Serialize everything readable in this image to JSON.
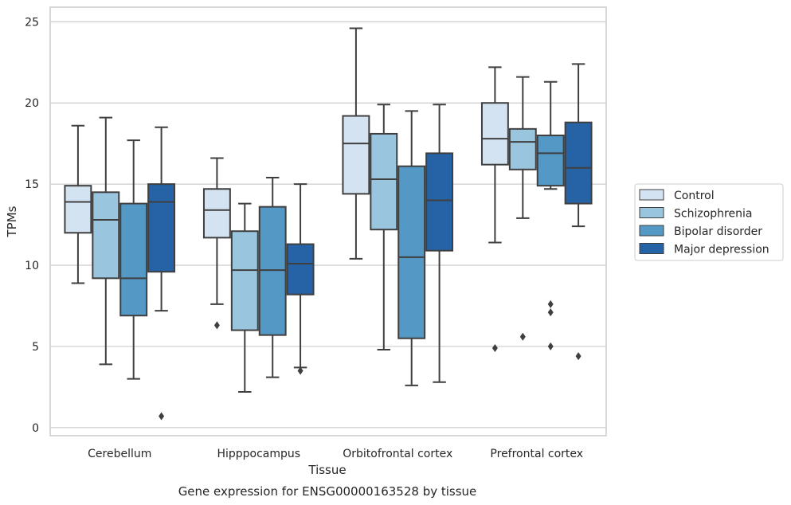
{
  "chart_data": {
    "type": "box",
    "title": "",
    "caption": "Gene expression for ENSG00000163528 by tissue",
    "xlabel": "Tissue",
    "ylabel": "TPMs",
    "ylim": [
      -0.5,
      25.9
    ],
    "yticks": [
      0,
      5,
      10,
      15,
      20,
      25
    ],
    "grid": "horizontal",
    "legend_position": "right",
    "categories": [
      "Cerebellum",
      "Hipppocampus",
      "Orbitofrontal cortex",
      "Prefrontal cortex"
    ],
    "series": [
      {
        "name": "Control",
        "color": "#d4e3f2",
        "boxes": [
          {
            "whislo": 8.9,
            "q1": 12.0,
            "med": 13.9,
            "q3": 14.9,
            "whishi": 18.6,
            "fliers": []
          },
          {
            "whislo": 7.6,
            "q1": 11.7,
            "med": 13.4,
            "q3": 14.7,
            "whishi": 16.6,
            "fliers": [
              6.3
            ]
          },
          {
            "whislo": 10.4,
            "q1": 14.4,
            "med": 17.5,
            "q3": 19.2,
            "whishi": 24.6,
            "fliers": []
          },
          {
            "whislo": 11.4,
            "q1": 16.2,
            "med": 17.8,
            "q3": 20.0,
            "whishi": 22.2,
            "fliers": [
              4.9
            ]
          }
        ]
      },
      {
        "name": "Schizophrenia",
        "color": "#9ac5df",
        "boxes": [
          {
            "whislo": 3.9,
            "q1": 9.2,
            "med": 12.8,
            "q3": 14.5,
            "whishi": 19.1,
            "fliers": []
          },
          {
            "whislo": 2.2,
            "q1": 6.0,
            "med": 9.7,
            "q3": 12.1,
            "whishi": 13.8,
            "fliers": []
          },
          {
            "whislo": 4.8,
            "q1": 12.2,
            "med": 15.3,
            "q3": 18.1,
            "whishi": 19.9,
            "fliers": []
          },
          {
            "whislo": 12.9,
            "q1": 15.9,
            "med": 17.6,
            "q3": 18.4,
            "whishi": 21.6,
            "fliers": [
              5.6
            ]
          }
        ]
      },
      {
        "name": "Bipolar disorder",
        "color": "#5498c5",
        "boxes": [
          {
            "whislo": 3.0,
            "q1": 6.9,
            "med": 9.2,
            "q3": 13.8,
            "whishi": 17.7,
            "fliers": []
          },
          {
            "whislo": 3.1,
            "q1": 5.7,
            "med": 9.7,
            "q3": 13.6,
            "whishi": 15.4,
            "fliers": []
          },
          {
            "whislo": 2.6,
            "q1": 5.5,
            "med": 10.5,
            "q3": 16.1,
            "whishi": 19.5,
            "fliers": []
          },
          {
            "whislo": 14.7,
            "q1": 14.9,
            "med": 16.9,
            "q3": 18.0,
            "whishi": 21.3,
            "fliers": [
              7.6,
              7.1,
              5.0
            ]
          }
        ]
      },
      {
        "name": "Major depression",
        "color": "#2563a6",
        "boxes": [
          {
            "whislo": 7.2,
            "q1": 9.6,
            "med": 13.9,
            "q3": 15.0,
            "whishi": 18.5,
            "fliers": [
              0.7
            ]
          },
          {
            "whislo": 3.7,
            "q1": 8.2,
            "med": 10.1,
            "q3": 11.3,
            "whishi": 15.0,
            "fliers": [
              3.5
            ]
          },
          {
            "whislo": 2.8,
            "q1": 10.9,
            "med": 14.0,
            "q3": 16.9,
            "whishi": 19.9,
            "fliers": []
          },
          {
            "whislo": 12.4,
            "q1": 13.8,
            "med": 16.0,
            "q3": 18.8,
            "whishi": 22.4,
            "fliers": [
              4.4
            ]
          }
        ]
      }
    ],
    "colors": {
      "box_edge": "#3f3f3f",
      "grid": "#cccccc",
      "frame": "#cccccc"
    }
  }
}
